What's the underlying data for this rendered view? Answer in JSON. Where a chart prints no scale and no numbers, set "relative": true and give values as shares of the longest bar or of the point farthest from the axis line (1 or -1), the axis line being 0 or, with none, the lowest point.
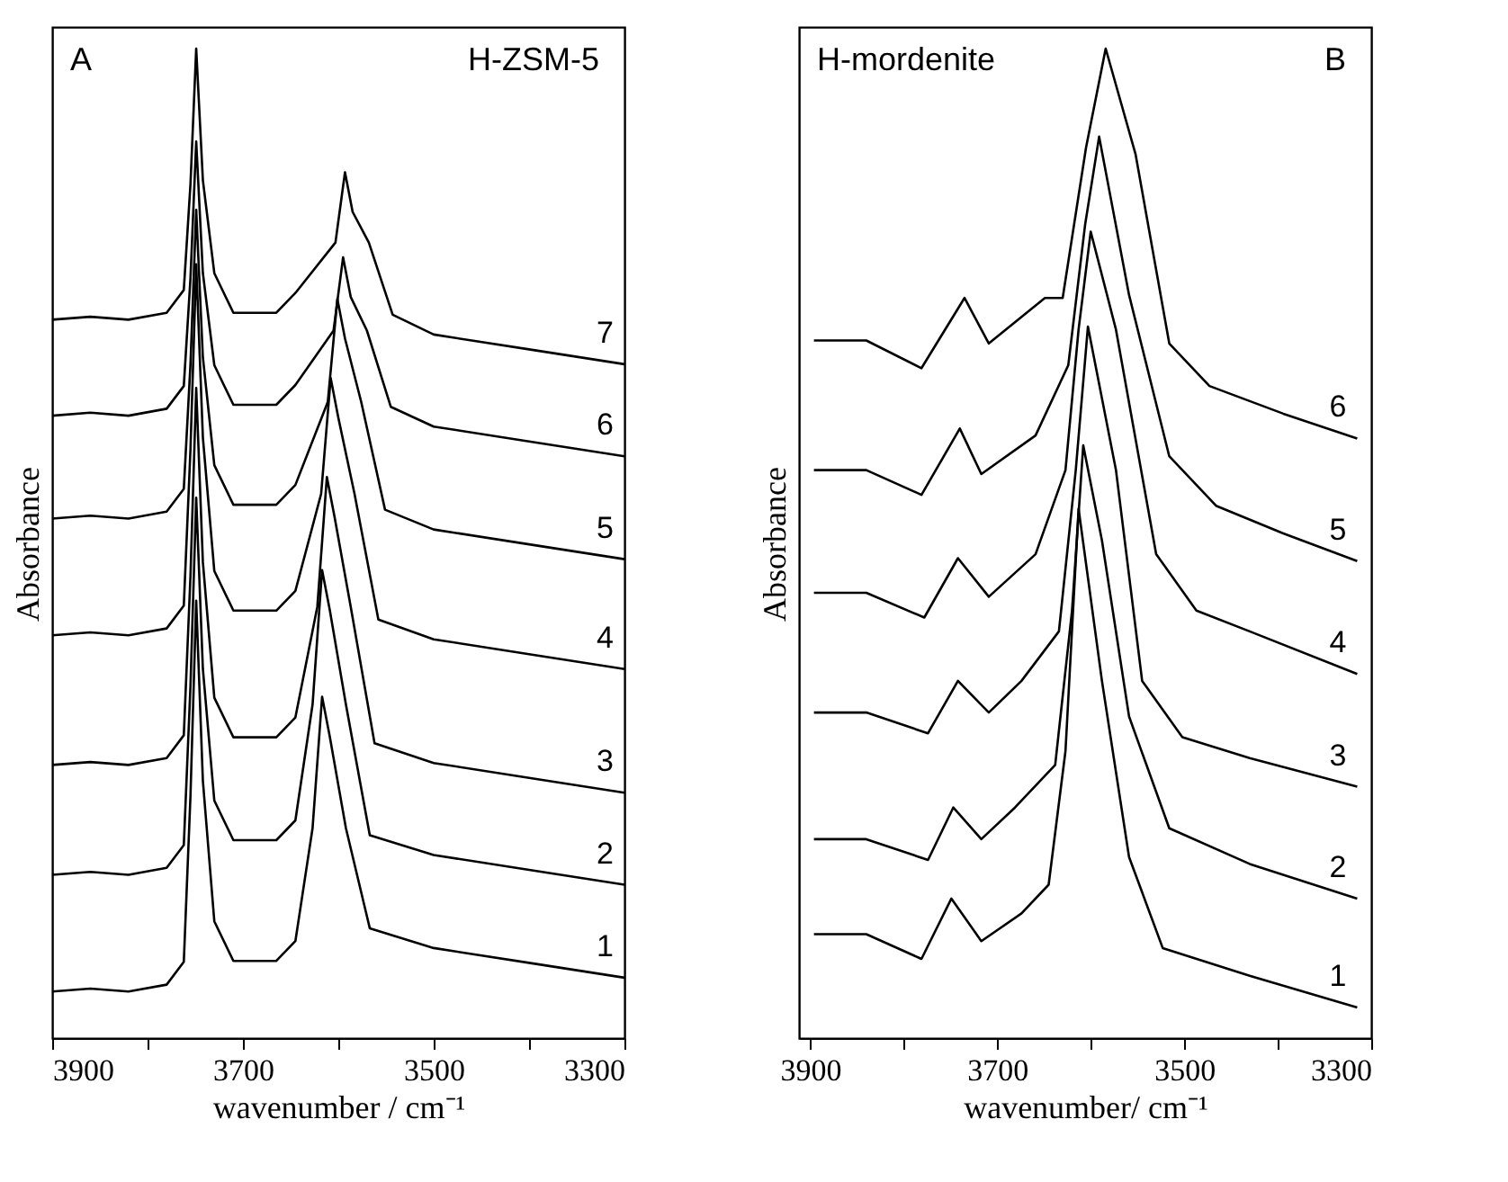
{
  "chart_data": [
    {
      "type": "line",
      "relative": true,
      "xlabel": "wavenumber / cm⁻¹",
      "ylabel": "Absorbance",
      "xlim": [
        3900,
        3300
      ],
      "xticks": [
        3900,
        {
          "value": 3800,
          "label": null
        },
        3700,
        {
          "value": 3600,
          "label": null
        },
        3500,
        {
          "value": 3400,
          "label": null
        },
        3300
      ],
      "annotations": [
        "A",
        "H-ZSM-5"
      ],
      "legend": false,
      "grid": false,
      "series": [
        {
          "name": "1",
          "color": "#000000",
          "x": [
            3900,
            3860,
            3820,
            3780,
            3762,
            3755,
            3749,
            3742,
            3730,
            3710,
            3665,
            3645,
            3627,
            3617,
            3609,
            3592,
            3567,
            3500,
            3400,
            3300
          ],
          "values": [
            0.047,
            0.05,
            0.047,
            0.054,
            0.077,
            0.245,
            0.442,
            0.26,
            0.118,
            0.078,
            0.078,
            0.098,
            0.212,
            0.345,
            0.305,
            0.212,
            0.111,
            0.091,
            0.076,
            0.061
          ]
        },
        {
          "name": "2",
          "color": "#000000",
          "x": [
            3900,
            3860,
            3820,
            3780,
            3762,
            3755,
            3749,
            3742,
            3730,
            3710,
            3665,
            3645,
            3627,
            3617,
            3609,
            3592,
            3567,
            3500,
            3400,
            3300
          ],
          "values": [
            0.165,
            0.168,
            0.165,
            0.172,
            0.195,
            0.356,
            0.546,
            0.373,
            0.24,
            0.2,
            0.2,
            0.22,
            0.337,
            0.473,
            0.433,
            0.337,
            0.205,
            0.185,
            0.17,
            0.155
          ]
        },
        {
          "name": "3",
          "color": "#000000",
          "x": [
            3900,
            3860,
            3820,
            3780,
            3762,
            3755,
            3749,
            3742,
            3730,
            3710,
            3665,
            3645,
            3622,
            3612,
            3604,
            3587,
            3562,
            3500,
            3400,
            3300
          ],
          "values": [
            0.276,
            0.279,
            0.276,
            0.283,
            0.306,
            0.467,
            0.657,
            0.481,
            0.344,
            0.304,
            0.304,
            0.324,
            0.436,
            0.567,
            0.527,
            0.436,
            0.298,
            0.278,
            0.263,
            0.248
          ]
        },
        {
          "name": "4",
          "color": "#000000",
          "x": [
            3900,
            3860,
            3820,
            3780,
            3762,
            3755,
            3749,
            3742,
            3730,
            3710,
            3665,
            3645,
            3618,
            3608,
            3600,
            3583,
            3558,
            3500,
            3400,
            3300
          ],
          "values": [
            0.407,
            0.41,
            0.407,
            0.414,
            0.437,
            0.595,
            0.782,
            0.607,
            0.472,
            0.432,
            0.432,
            0.452,
            0.55,
            0.667,
            0.627,
            0.55,
            0.423,
            0.403,
            0.388,
            0.373
          ]
        },
        {
          "name": "5",
          "color": "#000000",
          "x": [
            3900,
            3860,
            3820,
            3780,
            3762,
            3755,
            3749,
            3742,
            3730,
            3710,
            3665,
            3645,
            3611,
            3601,
            3593,
            3576,
            3551,
            3500,
            3400,
            3300
          ],
          "values": [
            0.525,
            0.528,
            0.525,
            0.532,
            0.555,
            0.681,
            0.837,
            0.688,
            0.579,
            0.539,
            0.539,
            0.559,
            0.643,
            0.747,
            0.707,
            0.643,
            0.534,
            0.514,
            0.499,
            0.484
          ]
        },
        {
          "name": "6",
          "color": "#000000",
          "x": [
            3900,
            3860,
            3820,
            3780,
            3762,
            3755,
            3749,
            3742,
            3730,
            3710,
            3665,
            3645,
            3605,
            3595,
            3587,
            3570,
            3545,
            3500,
            3400,
            3300
          ],
          "values": [
            0.629,
            0.632,
            0.629,
            0.636,
            0.659,
            0.768,
            0.906,
            0.773,
            0.68,
            0.64,
            0.64,
            0.66,
            0.715,
            0.789,
            0.749,
            0.715,
            0.638,
            0.618,
            0.603,
            0.588
          ]
        },
        {
          "name": "7",
          "color": "#000000",
          "x": [
            3900,
            3860,
            3820,
            3780,
            3762,
            3755,
            3749,
            3742,
            3730,
            3710,
            3665,
            3645,
            3603,
            3593,
            3585,
            3568,
            3543,
            3500,
            3400,
            3300
          ],
          "values": [
            0.726,
            0.729,
            0.726,
            0.733,
            0.756,
            0.863,
            1.0,
            0.867,
            0.773,
            0.733,
            0.733,
            0.753,
            0.804,
            0.875,
            0.835,
            0.804,
            0.731,
            0.711,
            0.696,
            0.681
          ]
        }
      ]
    },
    {
      "type": "line",
      "relative": true,
      "xlabel": "wavenumber/ cm⁻¹",
      "ylabel": "Absorbance",
      "xlim": [
        3912,
        3300
      ],
      "xticks": [
        3900,
        {
          "value": 3800,
          "label": null
        },
        3700,
        {
          "value": 3600,
          "label": null
        },
        3500,
        {
          "value": 3400,
          "label": null
        },
        3300
      ],
      "annotations": [
        "H-mordenite",
        "B"
      ],
      "legend": false,
      "grid": false,
      "series": [
        {
          "name": "1",
          "color": "#000000",
          "x": [
            3896,
            3840,
            3781,
            3749,
            3717,
            3674,
            3645,
            3627,
            3613,
            3588,
            3559,
            3523,
            3430,
            3315
          ],
          "values": [
            0.105,
            0.105,
            0.08,
            0.141,
            0.098,
            0.126,
            0.155,
            0.29,
            0.535,
            0.361,
            0.183,
            0.091,
            0.063,
            0.031
          ]
        },
        {
          "name": "2",
          "color": "#000000",
          "x": [
            3896,
            3840,
            3774,
            3747,
            3717,
            3681,
            3638,
            3620,
            3608,
            3588,
            3559,
            3516,
            3430,
            3315
          ],
          "values": [
            0.201,
            0.201,
            0.18,
            0.233,
            0.201,
            0.233,
            0.276,
            0.432,
            0.599,
            0.503,
            0.325,
            0.212,
            0.176,
            0.141
          ]
        },
        {
          "name": "3",
          "color": "#000000",
          "x": [
            3896,
            3840,
            3774,
            3742,
            3709,
            3674,
            3634,
            3616,
            3603,
            3573,
            3545,
            3502,
            3430,
            3315
          ],
          "values": [
            0.329,
            0.329,
            0.308,
            0.361,
            0.329,
            0.361,
            0.411,
            0.574,
            0.719,
            0.574,
            0.361,
            0.304,
            0.283,
            0.254
          ]
        },
        {
          "name": "4",
          "color": "#000000",
          "x": [
            3896,
            3840,
            3778,
            3742,
            3709,
            3659,
            3627,
            3613,
            3600,
            3573,
            3530,
            3487,
            3430,
            3315
          ],
          "values": [
            0.45,
            0.45,
            0.425,
            0.485,
            0.446,
            0.489,
            0.574,
            0.716,
            0.815,
            0.716,
            0.489,
            0.432,
            0.411,
            0.368
          ]
        },
        {
          "name": "5",
          "color": "#000000",
          "x": [
            3896,
            3840,
            3781,
            3740,
            3717,
            3659,
            3624,
            3606,
            3591,
            3559,
            3516,
            3466,
            3394,
            3315
          ],
          "values": [
            0.574,
            0.574,
            0.549,
            0.616,
            0.57,
            0.609,
            0.68,
            0.822,
            0.911,
            0.751,
            0.588,
            0.538,
            0.51,
            0.482
          ]
        },
        {
          "name": "6",
          "color": "#000000",
          "x": [
            3896,
            3840,
            3781,
            3735,
            3709,
            3649,
            3630,
            3605,
            3584,
            3552,
            3516,
            3473,
            3394,
            3315
          ],
          "values": [
            0.705,
            0.705,
            0.677,
            0.748,
            0.702,
            0.748,
            0.748,
            0.9,
            1.0,
            0.893,
            0.702,
            0.659,
            0.631,
            0.606
          ]
        }
      ]
    }
  ]
}
